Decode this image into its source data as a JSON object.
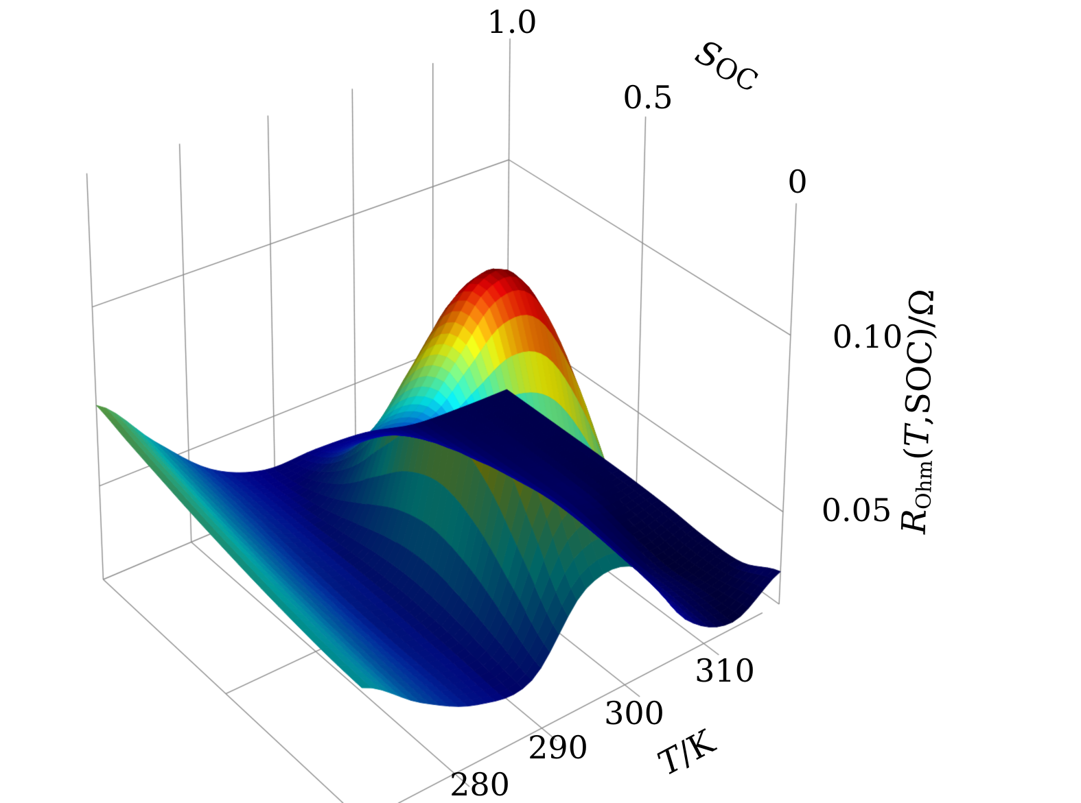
{
  "axes": {
    "t": {
      "label_var": "T",
      "label_unit": "/K",
      "ticks": [
        "280",
        "290",
        "300",
        "310"
      ]
    },
    "soc": {
      "label_var": "S",
      "label_sub": "OC",
      "ticks": [
        "1.0",
        "0.5",
        "0"
      ]
    },
    "z": {
      "label_var": "R",
      "label_sub": "Ohm",
      "label_open": "(",
      "label_arg": "T",
      "label_rest": ",SOC)/Ω",
      "ticks": [
        "0.10",
        "0.05"
      ]
    }
  },
  "colors": {
    "grid": "#8a8a8a",
    "background": "#ffffff",
    "text": "#000000"
  },
  "chart_data": {
    "type": "surface",
    "title": "",
    "xlabel": "T/K",
    "ylabel": "SOC",
    "zlabel": "R_Ohm(T,SOC)/Ohm",
    "colormap": "jet",
    "grid": true,
    "legend": false,
    "x_T": [
      273,
      278,
      283,
      288,
      293,
      298,
      303,
      308,
      313
    ],
    "y_SOC": [
      0,
      0.125,
      0.25,
      0.375,
      0.5,
      0.625,
      0.75,
      0.875,
      1.0
    ],
    "z_R_ohm_grid": [
      [
        0.0584,
        0.0469,
        0.0387,
        0.0378,
        0.0557,
        0.0545,
        0.0329,
        0.0249,
        0.0326
      ],
      [
        0.059,
        0.0473,
        0.039,
        0.0413,
        0.0774,
        0.0762,
        0.0361,
        0.0253,
        0.0274
      ],
      [
        0.0602,
        0.0481,
        0.0392,
        0.0448,
        0.0994,
        0.0982,
        0.0398,
        0.0249,
        0.027
      ],
      [
        0.0617,
        0.0491,
        0.0396,
        0.0465,
        0.1095,
        0.1083,
        0.0417,
        0.0267,
        0.0281
      ],
      [
        0.0635,
        0.0502,
        0.04,
        0.0452,
        0.1008,
        0.0996,
        0.0405,
        0.0291,
        0.0287
      ],
      [
        0.0655,
        0.0515,
        0.0405,
        0.0419,
        0.0794,
        0.0782,
        0.0372,
        0.0294,
        0.0289
      ],
      [
        0.0678,
        0.053,
        0.0411,
        0.0385,
        0.0571,
        0.0559,
        0.0337,
        0.0293,
        0.0289
      ],
      [
        0.0702,
        0.0546,
        0.0417,
        0.0362,
        0.0422,
        0.041,
        0.0314,
        0.0292,
        0.0289
      ],
      [
        0.0728,
        0.0563,
        0.0419,
        0.0352,
        0.0351,
        0.0339,
        0.0302,
        0.0292,
        0.0289
      ]
    ],
    "x_range": [
      270,
      320
    ],
    "y_range": [
      0,
      1
    ],
    "z_range": [
      0.023,
      0.136
    ],
    "x_ticks": [
      280,
      290,
      300,
      310
    ],
    "y_ticks": [
      1.0,
      0.5,
      0
    ],
    "z_ticks": [
      0.1,
      0.05
    ],
    "peak": {
      "T": 295.5,
      "SOC": 0.38,
      "R_ohm": 0.11
    }
  }
}
